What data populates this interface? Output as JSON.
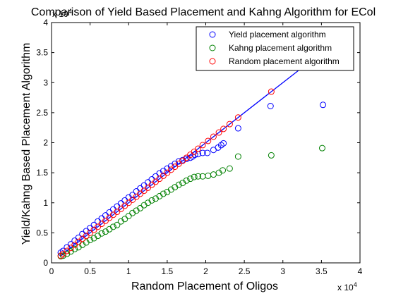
{
  "chart_data": {
    "type": "scatter",
    "title": "Comparison of Yield Based Placement and Kahng Algorithm for ECol",
    "xlabel": "Random Placement of Oligos",
    "ylabel": "Yield/Kahng Based Placement Algorithm",
    "x_exponent_label": "x 10",
    "x_exponent": "4",
    "y_exponent_label": "x 10",
    "y_exponent": "4",
    "xlim": [
      0,
      40000
    ],
    "ylim": [
      0,
      40000
    ],
    "x_ticks": [
      0,
      5000,
      10000,
      15000,
      20000,
      25000,
      30000,
      35000,
      40000
    ],
    "x_tick_labels": [
      "0",
      "0.5",
      "1",
      "1.5",
      "2",
      "2.5",
      "3",
      "3.5",
      "4"
    ],
    "y_ticks": [
      0,
      5000,
      10000,
      15000,
      20000,
      25000,
      30000,
      35000,
      40000
    ],
    "y_tick_labels": [
      "0",
      "0.5",
      "1",
      "1.5",
      "2",
      "2.5",
      "3",
      "3.5",
      "4"
    ],
    "grid": false,
    "legend_position": "top-right",
    "series": [
      {
        "name": "Yield placement algorithm",
        "marker": "circle-open",
        "color": "#0000ff",
        "x": [
          1200,
          1500,
          2000,
          2500,
          3000,
          3500,
          4000,
          4500,
          5000,
          5500,
          6000,
          6500,
          7000,
          7500,
          8000,
          8500,
          9000,
          9500,
          10000,
          10500,
          11000,
          11500,
          12000,
          12500,
          13000,
          13500,
          14000,
          14500,
          15000,
          15500,
          16000,
          16500,
          17000,
          17500,
          18000,
          18300,
          18600,
          19000,
          19600,
          20200,
          21000,
          21600,
          22000,
          22300,
          24200,
          28400,
          35200
        ],
        "y": [
          1700,
          2000,
          2600,
          3100,
          3700,
          4200,
          4800,
          5300,
          5800,
          6300,
          6900,
          7400,
          7900,
          8400,
          8900,
          9400,
          9900,
          10400,
          10900,
          11300,
          11900,
          12400,
          12900,
          13400,
          13900,
          14400,
          14900,
          15300,
          15700,
          16100,
          16500,
          16900,
          17100,
          17300,
          17500,
          17700,
          18000,
          18100,
          18300,
          18300,
          18800,
          19200,
          19600,
          19900,
          22400,
          26100,
          26300
        ]
      },
      {
        "name": "Kahng placement algorithm",
        "marker": "circle-open",
        "color": "#008000",
        "x": [
          1200,
          1500,
          2000,
          2500,
          3000,
          3500,
          4000,
          4500,
          5000,
          5500,
          6000,
          6500,
          7000,
          7500,
          8000,
          8500,
          9000,
          9500,
          10000,
          10500,
          11000,
          11500,
          12000,
          12500,
          13000,
          13500,
          14000,
          14500,
          15000,
          15500,
          16000,
          16500,
          17000,
          17500,
          18000,
          18500,
          19000,
          19600,
          20300,
          21000,
          21700,
          22200,
          23100,
          24200,
          28500,
          35100
        ],
        "y": [
          1100,
          1200,
          1500,
          1900,
          2300,
          2600,
          3000,
          3400,
          3800,
          4100,
          4500,
          4900,
          5200,
          5600,
          6000,
          6300,
          6900,
          7300,
          7800,
          8300,
          8700,
          9100,
          9600,
          10000,
          10400,
          10700,
          11100,
          11500,
          11800,
          12200,
          12600,
          13000,
          13300,
          13700,
          14000,
          14300,
          14400,
          14400,
          14500,
          14700,
          15000,
          15400,
          15700,
          17700,
          17900,
          19100
        ]
      },
      {
        "name": "Random placement algorithm",
        "marker": "circle-open",
        "color": "#ff0000",
        "x": [
          1200,
          1500,
          2000,
          2500,
          3000,
          3500,
          4000,
          4500,
          5000,
          5500,
          6000,
          6500,
          7000,
          7500,
          8000,
          8500,
          9000,
          9500,
          10000,
          10500,
          11000,
          11500,
          12000,
          12500,
          13000,
          13500,
          14000,
          14500,
          15000,
          15500,
          16000,
          16500,
          17000,
          17500,
          18000,
          18500,
          19000,
          19600,
          20300,
          21000,
          21700,
          22300,
          23100,
          24200,
          28500
        ],
        "y": [
          1200,
          1500,
          2000,
          2500,
          3000,
          3500,
          4000,
          4500,
          5000,
          5500,
          6000,
          6500,
          7000,
          7500,
          8000,
          8500,
          9000,
          9500,
          10000,
          10500,
          11000,
          11500,
          12000,
          12500,
          13000,
          13500,
          14000,
          14500,
          15000,
          15500,
          16000,
          16500,
          17000,
          17500,
          18000,
          18500,
          19000,
          19600,
          20300,
          21000,
          21700,
          22300,
          23100,
          24200,
          28500
        ]
      }
    ],
    "reference_line": {
      "color": "#0000ff",
      "x": [
        1200,
        36000
      ],
      "y": [
        1200,
        36000
      ]
    }
  }
}
